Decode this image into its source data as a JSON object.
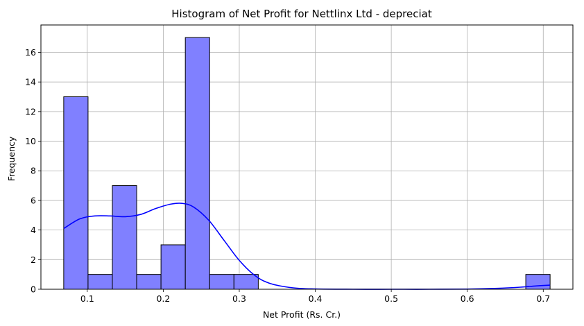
{
  "chart_data": {
    "type": "bar",
    "subtype": "histogram",
    "title": "Histogram of Net Profit for Nettlinx Ltd - depreciat",
    "xlabel": "Net Profit (Rs. Cr.)",
    "ylabel": "Frequency",
    "xlim": [
      0.039,
      0.739
    ],
    "ylim": [
      0,
      17.85
    ],
    "xticks": [
      0.1,
      0.2,
      0.3,
      0.4,
      0.5,
      0.6,
      0.7
    ],
    "xtick_labels": [
      "0.1",
      "0.2",
      "0.3",
      "0.4",
      "0.5",
      "0.6",
      "0.7"
    ],
    "yticks": [
      0,
      2,
      4,
      6,
      8,
      10,
      12,
      14,
      16
    ],
    "ytick_labels": [
      "0",
      "2",
      "4",
      "6",
      "8",
      "10",
      "12",
      "14",
      "16"
    ],
    "grid": true,
    "bins": [
      {
        "x0": 0.069,
        "x1": 0.101,
        "count": 13
      },
      {
        "x0": 0.101,
        "x1": 0.133,
        "count": 1
      },
      {
        "x0": 0.133,
        "x1": 0.165,
        "count": 7
      },
      {
        "x0": 0.165,
        "x1": 0.197,
        "count": 1
      },
      {
        "x0": 0.197,
        "x1": 0.229,
        "count": 3
      },
      {
        "x0": 0.229,
        "x1": 0.261,
        "count": 17
      },
      {
        "x0": 0.261,
        "x1": 0.293,
        "count": 1
      },
      {
        "x0": 0.293,
        "x1": 0.325,
        "count": 1
      },
      {
        "x0": 0.677,
        "x1": 0.709,
        "count": 1
      }
    ],
    "kde": {
      "x": [
        0.069,
        0.09,
        0.11,
        0.13,
        0.15,
        0.17,
        0.19,
        0.21,
        0.225,
        0.24,
        0.26,
        0.28,
        0.3,
        0.32,
        0.34,
        0.37,
        0.4,
        0.45,
        0.5,
        0.55,
        0.6,
        0.64,
        0.67,
        0.69,
        0.709
      ],
      "y": [
        4.1,
        4.75,
        4.95,
        4.95,
        4.9,
        5.05,
        5.45,
        5.75,
        5.8,
        5.55,
        4.65,
        3.3,
        1.95,
        0.95,
        0.4,
        0.1,
        0.02,
        0.0,
        0.0,
        0.0,
        0.01,
        0.06,
        0.14,
        0.22,
        0.28
      ]
    },
    "colors": {
      "bar_fill": "#8080ff",
      "bar_edge": "#000000",
      "kde_line": "#0000ff",
      "grid": "#b0b0b0"
    }
  }
}
